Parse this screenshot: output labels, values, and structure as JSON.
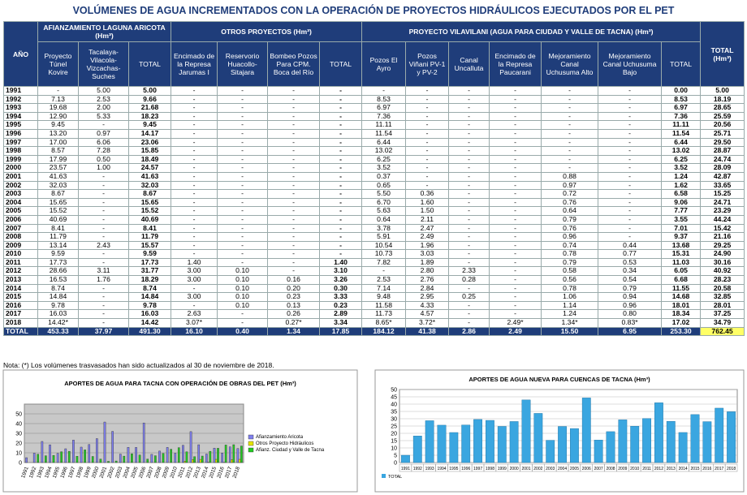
{
  "title": "VOLÚMENES DE AGUA INCREMENTADOS CON LA OPERACIÓN DE PROYECTOS HIDRÁULICOS EJECUTADOS POR EL PET",
  "table": {
    "group_headers": [
      "AÑO",
      "AFIANZAMIENTO LAGUNA ARICOTA (Hm³)",
      "OTROS PROYECTOS (Hm³)",
      "PROYECTO VILAVILANI (AGUA PARA CIUDAD Y VALLE DE TACNA) (Hm³)",
      "TOTAL (Hm³)"
    ],
    "columns": [
      "Proyecto Túnel Kovire",
      "Tacalaya-Vilacola-Vizcachas-Suches",
      "TOTAL",
      "Encimado de la Represa Jarumas I",
      "Reservorio Huacollo-Sitajara",
      "Bombeo Pozos Para CPM. Boca del Río",
      "TOTAL",
      "Pozos El Ayro",
      "Pozos Viñani PV-1 y PV-2",
      "Canal Uncalluta",
      "Encimado de la Represa Paucarani",
      "Mejoramiento Canal Uchusuma Alto",
      "Mejoramiento Canal Uchusuma Bajo",
      "TOTAL"
    ],
    "rows": [
      [
        "1991",
        "-",
        "5.00",
        "5.00",
        "-",
        "-",
        "-",
        "-",
        "-",
        "-",
        "-",
        "-",
        "-",
        "-",
        "0.00",
        "5.00"
      ],
      [
        "1992",
        "7.13",
        "2.53",
        "9.66",
        "-",
        "-",
        "-",
        "-",
        "8.53",
        "-",
        "-",
        "-",
        "-",
        "-",
        "8.53",
        "18.19"
      ],
      [
        "1993",
        "19.68",
        "2.00",
        "21.68",
        "-",
        "-",
        "-",
        "-",
        "6.97",
        "-",
        "-",
        "-",
        "-",
        "-",
        "6.97",
        "28.65"
      ],
      [
        "1994",
        "12.90",
        "5.33",
        "18.23",
        "-",
        "-",
        "-",
        "-",
        "7.36",
        "-",
        "-",
        "-",
        "-",
        "-",
        "7.36",
        "25.59"
      ],
      [
        "1995",
        "9.45",
        "-",
        "9.45",
        "-",
        "-",
        "-",
        "-",
        "11.11",
        "-",
        "-",
        "-",
        "-",
        "-",
        "11.11",
        "20.56"
      ],
      [
        "1996",
        "13.20",
        "0.97",
        "14.17",
        "-",
        "-",
        "-",
        "-",
        "11.54",
        "-",
        "-",
        "-",
        "-",
        "-",
        "11.54",
        "25.71"
      ],
      [
        "1997",
        "17.00",
        "6.06",
        "23.06",
        "-",
        "-",
        "-",
        "-",
        "6.44",
        "-",
        "-",
        "-",
        "-",
        "-",
        "6.44",
        "29.50"
      ],
      [
        "1998",
        "8.57",
        "7.28",
        "15.85",
        "-",
        "-",
        "-",
        "-",
        "13.02",
        "-",
        "-",
        "-",
        "-",
        "-",
        "13.02",
        "28.87"
      ],
      [
        "1999",
        "17.99",
        "0.50",
        "18.49",
        "-",
        "-",
        "-",
        "-",
        "6.25",
        "-",
        "-",
        "-",
        "-",
        "-",
        "6.25",
        "24.74"
      ],
      [
        "2000",
        "23.57",
        "1.00",
        "24.57",
        "-",
        "-",
        "-",
        "-",
        "3.52",
        "-",
        "-",
        "-",
        "-",
        "-",
        "3.52",
        "28.09"
      ],
      [
        "2001",
        "41.63",
        "-",
        "41.63",
        "-",
        "-",
        "-",
        "-",
        "0.37",
        "-",
        "-",
        "-",
        "0.88",
        "-",
        "1.24",
        "42.87"
      ],
      [
        "2002",
        "32.03",
        "-",
        "32.03",
        "-",
        "-",
        "-",
        "-",
        "0.65",
        "-",
        "-",
        "-",
        "0.97",
        "-",
        "1.62",
        "33.65"
      ],
      [
        "2003",
        "8.67",
        "-",
        "8.67",
        "-",
        "-",
        "-",
        "-",
        "5.50",
        "0.36",
        "-",
        "-",
        "0.72",
        "-",
        "6.58",
        "15.25"
      ],
      [
        "2004",
        "15.65",
        "-",
        "15.65",
        "-",
        "-",
        "-",
        "-",
        "6.70",
        "1.60",
        "-",
        "-",
        "0.76",
        "-",
        "9.06",
        "24.71"
      ],
      [
        "2005",
        "15.52",
        "-",
        "15.52",
        "-",
        "-",
        "-",
        "-",
        "5.63",
        "1.50",
        "-",
        "-",
        "0.64",
        "-",
        "7.77",
        "23.29"
      ],
      [
        "2006",
        "40.69",
        "-",
        "40.69",
        "-",
        "-",
        "-",
        "-",
        "0.64",
        "2.11",
        "-",
        "-",
        "0.79",
        "-",
        "3.55",
        "44.24"
      ],
      [
        "2007",
        "8.41",
        "-",
        "8.41",
        "-",
        "-",
        "-",
        "-",
        "3.78",
        "2.47",
        "-",
        "-",
        "0.76",
        "-",
        "7.01",
        "15.42"
      ],
      [
        "2008",
        "11.79",
        "-",
        "11.79",
        "-",
        "-",
        "-",
        "-",
        "5.91",
        "2.49",
        "-",
        "-",
        "0.96",
        "-",
        "9.37",
        "21.16"
      ],
      [
        "2009",
        "13.14",
        "2.43",
        "15.57",
        "-",
        "-",
        "-",
        "-",
        "10.54",
        "1.96",
        "-",
        "-",
        "0.74",
        "0.44",
        "13.68",
        "29.25"
      ],
      [
        "2010",
        "9.59",
        "-",
        "9.59",
        "-",
        "-",
        "-",
        "-",
        "10.73",
        "3.03",
        "-",
        "-",
        "0.78",
        "0.77",
        "15.31",
        "24.90"
      ],
      [
        "2011",
        "17.73",
        "-",
        "17.73",
        "1.40",
        "-",
        "-",
        "1.40",
        "7.82",
        "1.89",
        "-",
        "-",
        "0.79",
        "0.53",
        "11.03",
        "30.16"
      ],
      [
        "2012",
        "28.66",
        "3.11",
        "31.77",
        "3.00",
        "0.10",
        "-",
        "3.10",
        "-",
        "2.80",
        "2.33",
        "-",
        "0.58",
        "0.34",
        "6.05",
        "40.92"
      ],
      [
        "2013",
        "16.53",
        "1.76",
        "18.29",
        "3.00",
        "0.10",
        "0.16",
        "3.26",
        "2.53",
        "2.76",
        "0.28",
        "-",
        "0.56",
        "0.54",
        "6.68",
        "28.23"
      ],
      [
        "2014",
        "8.74",
        "-",
        "8.74",
        "-",
        "0.10",
        "0.20",
        "0.30",
        "7.14",
        "2.84",
        "-",
        "-",
        "0.78",
        "0.79",
        "11.55",
        "20.58"
      ],
      [
        "2015",
        "14.84",
        "-",
        "14.84",
        "3.00",
        "0.10",
        "0.23",
        "3.33",
        "9.48",
        "2.95",
        "0.25",
        "-",
        "1.06",
        "0.94",
        "14.68",
        "32.85"
      ],
      [
        "2016",
        "9.78",
        "-",
        "9.78",
        "-",
        "0.10",
        "0.13",
        "0.23",
        "11.58",
        "4.33",
        "-",
        "-",
        "1.14",
        "0.96",
        "18.01",
        "28.01"
      ],
      [
        "2017",
        "16.03",
        "-",
        "16.03",
        "2.63",
        "-",
        "0.26",
        "2.89",
        "11.73",
        "4.57",
        "-",
        "-",
        "1.24",
        "0.80",
        "18.34",
        "37.25"
      ],
      [
        "2018",
        "14.42*",
        "-",
        "14.42",
        "3.07*",
        "-",
        "0.27*",
        "3.34",
        "8.65*",
        "3.72*",
        "-",
        "2.49*",
        "1.34*",
        "0.83*",
        "17.02",
        "34.79"
      ]
    ],
    "total": [
      "TOTAL",
      "453.33",
      "37.97",
      "491.30",
      "16.10",
      "0.40",
      "1.34",
      "17.85",
      "184.12",
      "41.38",
      "2.86",
      "2.49",
      "15.50",
      "6.95",
      "253.30",
      "762.45"
    ]
  },
  "note": "Nota: (*) Los volúmenes trasvasados han sido actualizados al 30 de noviembre de 2018.",
  "chart_data": [
    {
      "type": "bar",
      "title": "APORTES DE AGUA PARA TACNA CON OPERACIÓN DE OBRAS DEL PET (Hm³)",
      "categories": [
        "1991",
        "1992",
        "1993",
        "1994",
        "1995",
        "1996",
        "1997",
        "1998",
        "1999",
        "2000",
        "2001",
        "2002",
        "2003",
        "2004",
        "2005",
        "2006",
        "2007",
        "2008",
        "2009",
        "2010",
        "2011",
        "2012",
        "2013",
        "2014",
        "2015",
        "2016",
        "2017",
        "2018"
      ],
      "series": [
        {
          "name": "Afianzamiento Aricota",
          "color": "#7f7fef",
          "values": [
            5.0,
            9.66,
            21.68,
            18.23,
            9.45,
            14.17,
            23.06,
            15.85,
            18.49,
            24.57,
            41.63,
            32.03,
            8.67,
            15.65,
            15.52,
            40.69,
            8.41,
            11.79,
            15.57,
            9.59,
            17.73,
            31.77,
            18.29,
            8.74,
            14.84,
            9.78,
            16.03,
            14.42
          ]
        },
        {
          "name": "Otros Proyecto Hidráulicos",
          "color": "#e6e600",
          "values": [
            null,
            null,
            null,
            null,
            null,
            null,
            null,
            null,
            null,
            null,
            null,
            null,
            null,
            null,
            null,
            null,
            null,
            null,
            null,
            null,
            1.4,
            3.1,
            3.26,
            0.3,
            3.33,
            0.23,
            2.89,
            3.34
          ]
        },
        {
          "name": "Afianz. Ciudad y Valle de Tacna",
          "color": "#22cc22",
          "values": [
            0.0,
            8.53,
            6.97,
            7.36,
            11.11,
            11.54,
            6.44,
            13.02,
            6.25,
            3.52,
            1.24,
            1.62,
            6.58,
            9.06,
            7.77,
            3.55,
            7.01,
            9.37,
            13.68,
            15.31,
            11.03,
            6.05,
            6.68,
            11.55,
            14.68,
            18.01,
            18.34,
            17.02
          ]
        }
      ],
      "ylim": [
        0,
        60
      ],
      "yticks": [
        0,
        10,
        20,
        30,
        40,
        50
      ]
    },
    {
      "type": "bar",
      "title": "APORTES DE AGUA NUEVA PARA CUENCAS DE TACNA (Hm³)",
      "categories": [
        "1991",
        "1992",
        "1993",
        "1994",
        "1995",
        "1996",
        "1997",
        "1998",
        "1999",
        "2000",
        "2001",
        "2002",
        "2003",
        "2004",
        "2005",
        "2006",
        "2007",
        "2008",
        "2009",
        "2010",
        "2011",
        "2012",
        "2013",
        "2014",
        "2015",
        "2016",
        "2017",
        "2018"
      ],
      "series": [
        {
          "name": "TOTAL",
          "color": "#3aa6e0",
          "values": [
            5.0,
            18.19,
            28.65,
            25.59,
            20.56,
            25.71,
            29.5,
            28.87,
            24.74,
            28.09,
            42.87,
            33.65,
            15.25,
            24.71,
            23.29,
            44.24,
            15.42,
            21.16,
            29.25,
            24.9,
            30.16,
            40.92,
            28.23,
            20.58,
            32.85,
            28.01,
            37.25,
            34.79
          ]
        }
      ],
      "ylim": [
        0,
        50
      ],
      "yticks": [
        0,
        5,
        10,
        15,
        20,
        25,
        30,
        35,
        40,
        45,
        50
      ]
    }
  ]
}
